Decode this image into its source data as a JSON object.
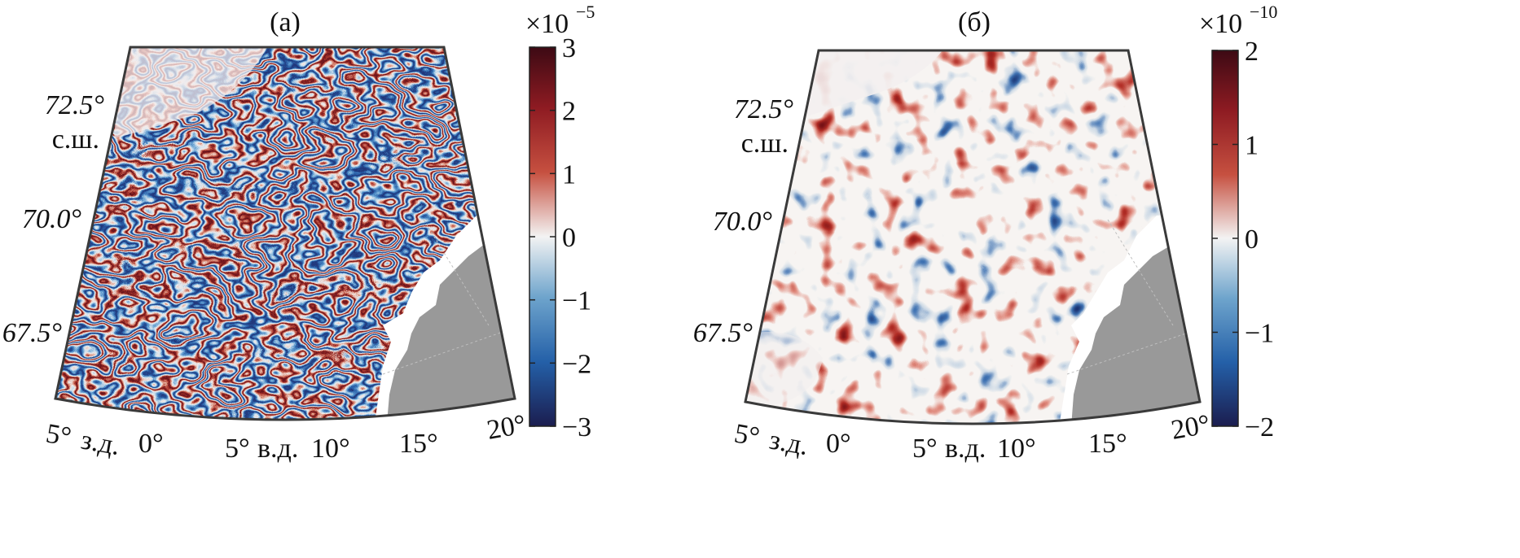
{
  "chart_data": [
    {
      "type": "heatmap",
      "title": "(а)",
      "projection": "conic map, Norwegian Sea region",
      "lat_ticks": [
        {
          "value": 72.5,
          "label": "72.5°",
          "suffix": "с.ш."
        },
        {
          "value": 70.0,
          "label": "70.0°"
        },
        {
          "value": 67.5,
          "label": "67.5°"
        }
      ],
      "lon_ticks": [
        {
          "value": -5,
          "label": "5°",
          "suffix": "з.д."
        },
        {
          "value": 0,
          "label": "0°"
        },
        {
          "value": 5,
          "label": "5°",
          "suffix": "в.д."
        },
        {
          "value": 10,
          "label": "10°"
        },
        {
          "value": 15,
          "label": "15°"
        },
        {
          "value": 20,
          "label": "20°"
        }
      ],
      "colorbar": {
        "exponent_label": "×10",
        "exponent": "−5",
        "range": [
          -3,
          3
        ],
        "ticks": [
          "3",
          "2",
          "1",
          "0",
          "−1",
          "−2",
          "−3"
        ],
        "tick_values": [
          3,
          2,
          1,
          0,
          -1,
          -2,
          -3
        ],
        "colormap": [
          "#2a1a4a",
          "#1c4f99",
          "#6ea4cc",
          "#f3f3f3",
          "#dd8466",
          "#b22b24",
          "#3d0a14"
        ]
      },
      "pattern": "filamentary"
    },
    {
      "type": "heatmap",
      "title": "(б)",
      "projection": "conic map, Norwegian Sea region",
      "lat_ticks": [
        {
          "value": 72.5,
          "label": "72.5°",
          "suffix": "с.ш."
        },
        {
          "value": 70.0,
          "label": "70.0°"
        },
        {
          "value": 67.5,
          "label": "67.5°"
        }
      ],
      "lon_ticks": [
        {
          "value": -5,
          "label": "5°",
          "suffix": "з.д."
        },
        {
          "value": 0,
          "label": "0°"
        },
        {
          "value": 5,
          "label": "5°",
          "suffix": "в.д."
        },
        {
          "value": 10,
          "label": "10°"
        },
        {
          "value": 15,
          "label": "15°"
        },
        {
          "value": 20,
          "label": "20°"
        }
      ],
      "colorbar": {
        "exponent_label": "×10",
        "exponent": "−10",
        "range": [
          -2,
          2
        ],
        "ticks": [
          "2",
          "1",
          "0",
          "−1",
          "−2"
        ],
        "tick_values": [
          2,
          1,
          0,
          -1,
          -2
        ],
        "colormap": [
          "#2a1a4a",
          "#1c4f99",
          "#6ea4cc",
          "#f3f3f3",
          "#dd8466",
          "#b22b24",
          "#3d0a14"
        ]
      },
      "pattern": "blobs"
    }
  ],
  "colors": {
    "land": "#999999",
    "ocean_zero": "#f4f4f4",
    "frame": "#3a3a3a"
  }
}
